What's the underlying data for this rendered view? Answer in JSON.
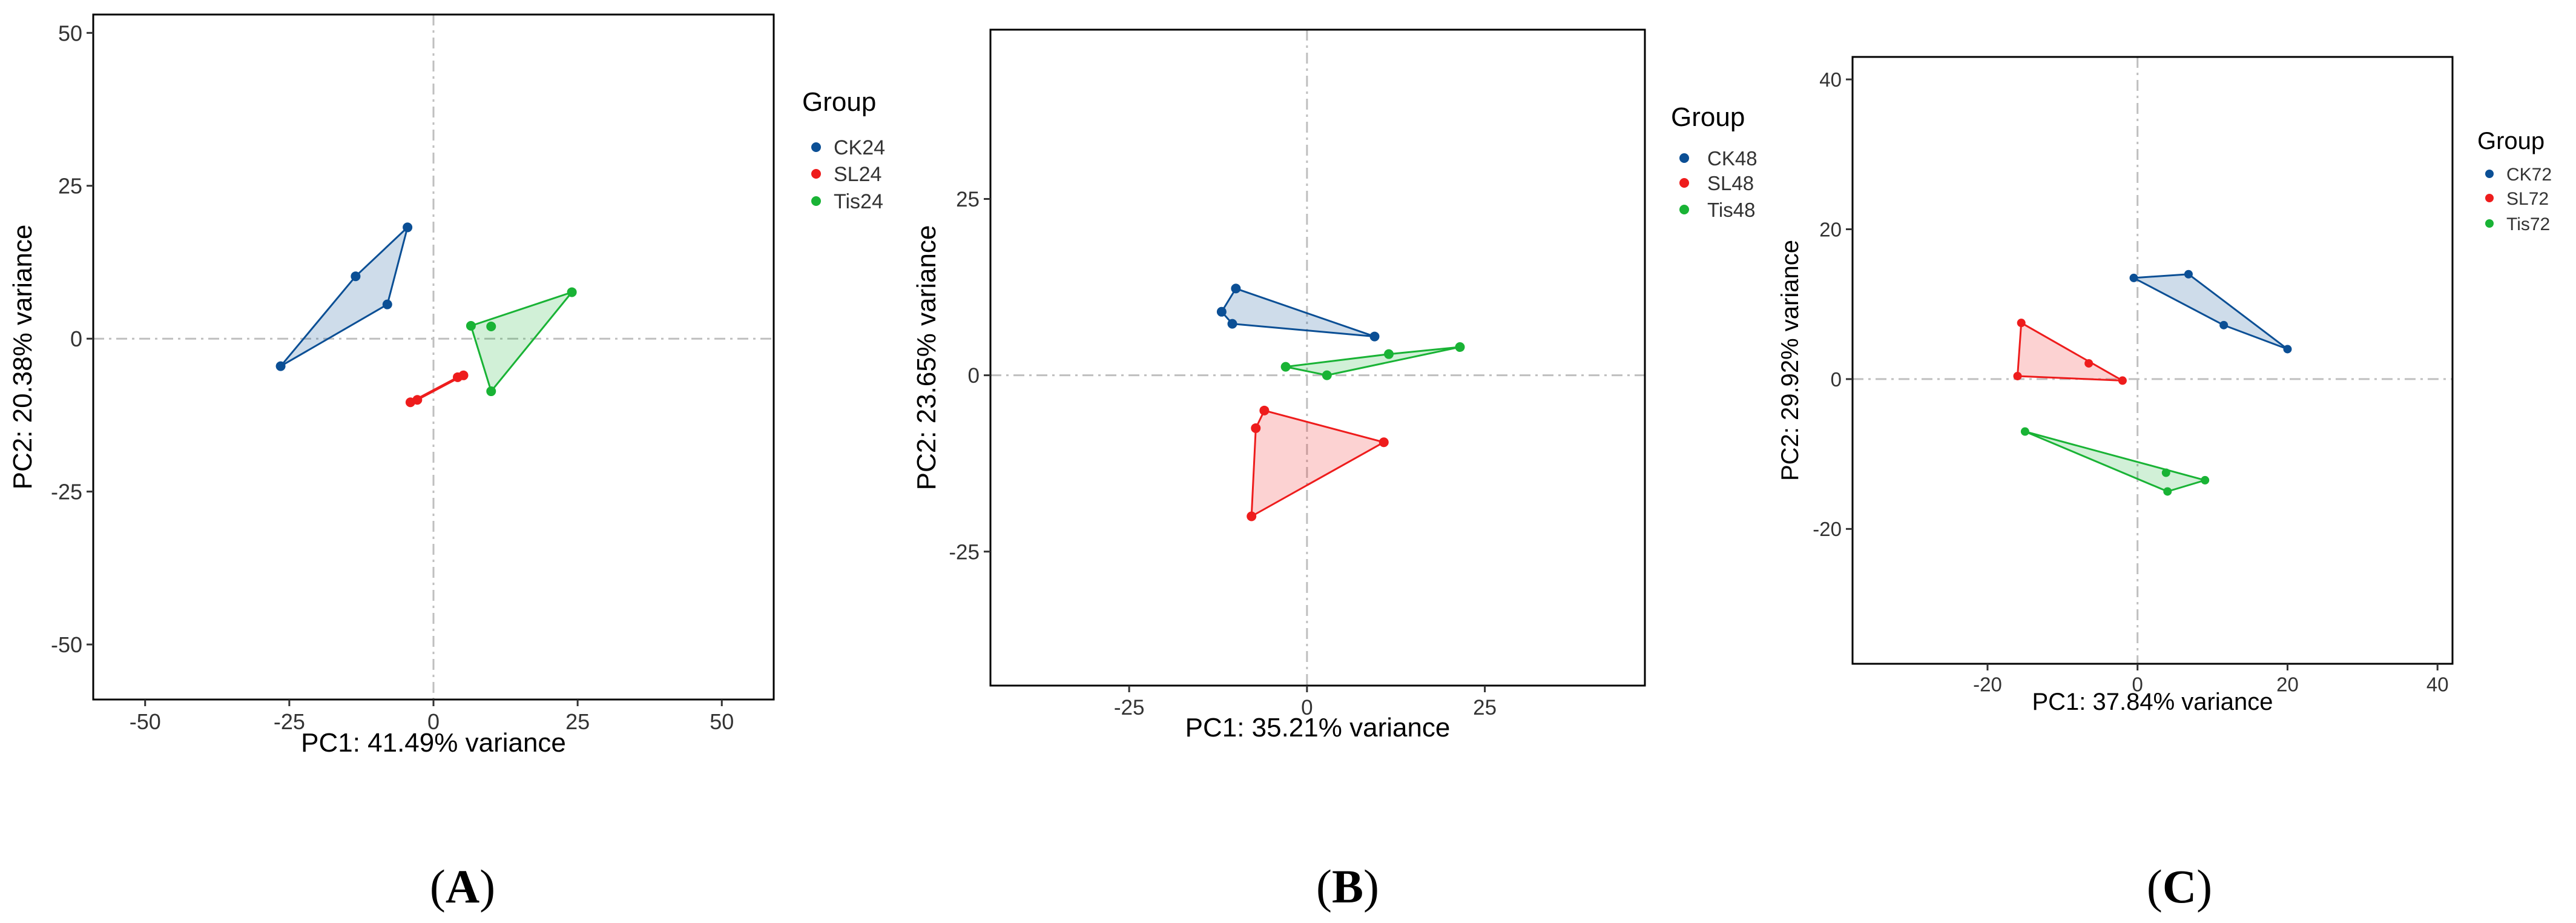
{
  "colors": {
    "CK": "#0b4f95",
    "SL": "#ee1c1c",
    "Tis": "#19b335",
    "refline": "#bfbfbf",
    "frame": "#000000"
  },
  "legend_title": "Group",
  "chart_data": [
    {
      "type": "scatter",
      "panel_label": "A",
      "xlabel": "PC1: 41.49% variance",
      "ylabel": "PC2: 20.38% variance",
      "xlim": [
        -59,
        59
      ],
      "ylim": [
        -59,
        53
      ],
      "xticks": [
        -50,
        -25,
        0,
        25,
        50
      ],
      "yticks": [
        -50,
        -25,
        0,
        25,
        50
      ],
      "grid": false,
      "reference_lines": {
        "x": 0,
        "y": 0
      },
      "legend_position": "right",
      "series": [
        {
          "name": "CK24",
          "group": "CK",
          "points": [
            [
              -26.5,
              -4.5
            ],
            [
              -13.5,
              10.2
            ],
            [
              -8,
              5.6
            ],
            [
              -4.5,
              18.2
            ]
          ]
        },
        {
          "name": "SL24",
          "group": "SL",
          "points": [
            [
              -4,
              -10.4
            ],
            [
              -2.8,
              -10
            ],
            [
              4.2,
              -6.3
            ],
            [
              5.2,
              -6
            ]
          ]
        },
        {
          "name": "Tis24",
          "group": "Tis",
          "points": [
            [
              6.5,
              2.1
            ],
            [
              10,
              2
            ],
            [
              24,
              7.6
            ],
            [
              10,
              -8.6
            ]
          ]
        }
      ]
    },
    {
      "type": "scatter",
      "panel_label": "B",
      "xlabel": "PC1: 35.21% variance",
      "ylabel": "PC2: 23.65% variance",
      "xlim": [
        -44.5,
        47.5
      ],
      "ylim": [
        -44,
        49
      ],
      "xticks": [
        -25,
        0,
        25
      ],
      "yticks": [
        -25,
        0,
        25
      ],
      "grid": false,
      "reference_lines": {
        "x": 0,
        "y": 0
      },
      "legend_position": "right",
      "series": [
        {
          "name": "CK48",
          "group": "CK",
          "points": [
            [
              -12,
              9
            ],
            [
              -10,
              12.3
            ],
            [
              -10.5,
              7.3
            ],
            [
              9.5,
              5.5
            ]
          ]
        },
        {
          "name": "SL48",
          "group": "SL",
          "points": [
            [
              -6,
              -5
            ],
            [
              -7.2,
              -7.5
            ],
            [
              -7.8,
              -20
            ],
            [
              10.8,
              -9.5
            ]
          ]
        },
        {
          "name": "Tis48",
          "group": "Tis",
          "points": [
            [
              -3,
              1.2
            ],
            [
              2.8,
              0
            ],
            [
              11.5,
              3
            ],
            [
              21.5,
              4
            ]
          ]
        }
      ]
    },
    {
      "type": "scatter",
      "panel_label": "C",
      "xlabel": "PC1: 37.84% variance",
      "ylabel": "PC2: 29.92% variance",
      "xlim": [
        -38,
        42
      ],
      "ylim": [
        -38,
        43
      ],
      "xticks": [
        -20,
        0,
        20,
        40
      ],
      "yticks": [
        -20,
        0,
        20,
        40
      ],
      "grid": false,
      "reference_lines": {
        "x": 0,
        "y": 0
      },
      "legend_position": "right",
      "series": [
        {
          "name": "CK72",
          "group": "CK",
          "points": [
            [
              -0.5,
              13.5
            ],
            [
              6.8,
              14
            ],
            [
              11.5,
              7.2
            ],
            [
              20,
              4
            ]
          ]
        },
        {
          "name": "SL72",
          "group": "SL",
          "points": [
            [
              -15.5,
              7.5
            ],
            [
              -6.5,
              2.1
            ],
            [
              -2,
              -0.2
            ],
            [
              -16,
              0.4
            ]
          ]
        },
        {
          "name": "Tis72",
          "group": "Tis",
          "points": [
            [
              -15,
              -7
            ],
            [
              3.8,
              -12.5
            ],
            [
              9,
              -13.5
            ],
            [
              4,
              -15
            ]
          ]
        }
      ]
    }
  ]
}
